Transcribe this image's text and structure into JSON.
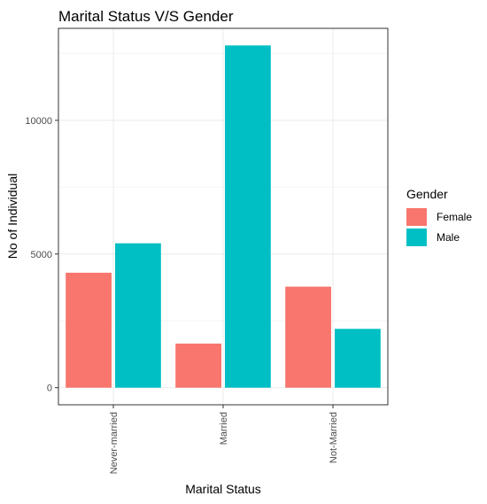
{
  "chart_data": {
    "type": "bar",
    "title": "Marital Status V/S Gender",
    "xlabel": "Marital Status",
    "ylabel": "No of Individual",
    "categories": [
      "Never-married",
      "Married",
      "Not-Married"
    ],
    "series": [
      {
        "name": "Female",
        "values": [
          4300,
          1650,
          3780
        ],
        "color": "#F8766D"
      },
      {
        "name": "Male",
        "values": [
          5400,
          12800,
          2200
        ],
        "color": "#00BFC4"
      }
    ],
    "ylim": [
      -640,
      13440
    ],
    "yticks": [
      0,
      5000,
      10000
    ],
    "ytick_labels": [
      "0",
      "5000",
      "10000"
    ],
    "grid": true,
    "legend": {
      "title": "Gender",
      "placement": "right"
    },
    "colors": {
      "panel_border": "#333333",
      "grid_major": "#ebebeb",
      "grid_minor": "#f5f5f5"
    }
  }
}
